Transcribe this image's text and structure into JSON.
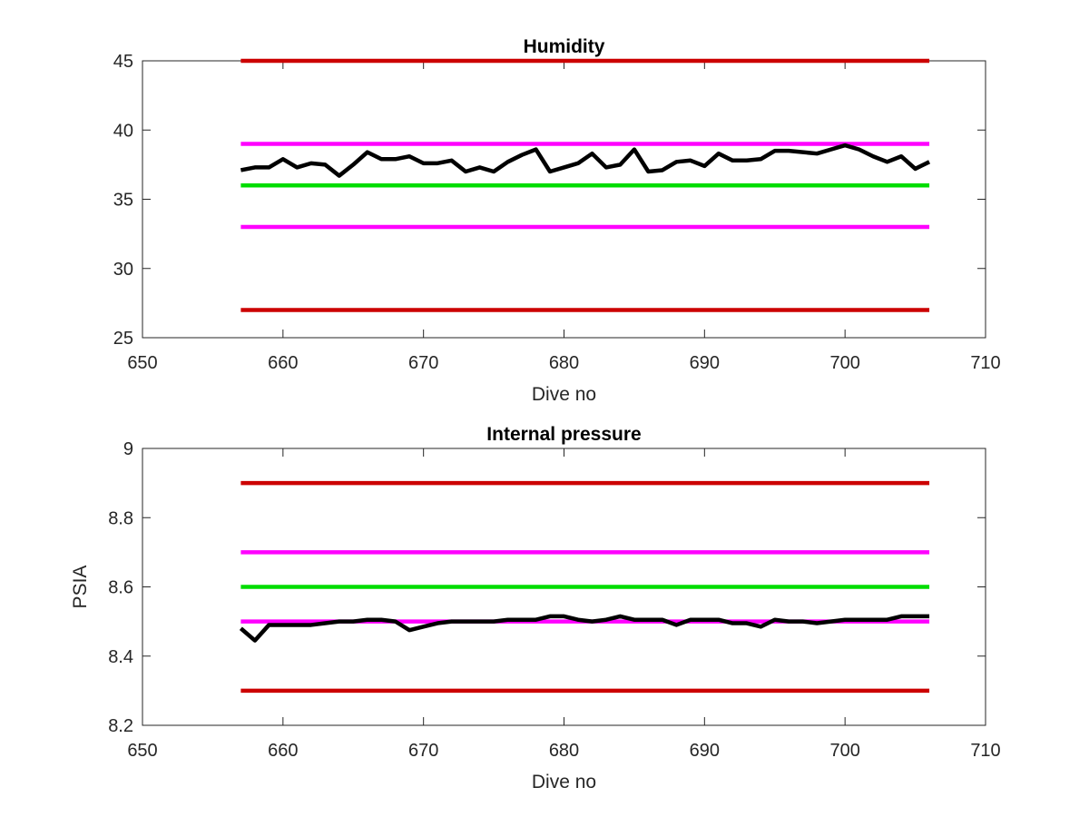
{
  "chart_data": [
    {
      "type": "line",
      "title": "Humidity",
      "xlabel": "Dive no",
      "ylabel": "",
      "xlim": [
        650,
        710
      ],
      "ylim": [
        25,
        45
      ],
      "xticks": [
        650,
        660,
        670,
        680,
        690,
        700,
        710
      ],
      "yticks": [
        25,
        30,
        35,
        40,
        45
      ],
      "grid": false,
      "series": [
        {
          "color": "#000000",
          "x": [
            657,
            658,
            659,
            660,
            661,
            662,
            663,
            664,
            665,
            666,
            667,
            668,
            669,
            670,
            671,
            672,
            673,
            674,
            675,
            676,
            677,
            678,
            679,
            680,
            681,
            682,
            683,
            684,
            685,
            686,
            687,
            688,
            689,
            690,
            691,
            692,
            693,
            694,
            695,
            696,
            697,
            698,
            699,
            700,
            701,
            702,
            703,
            704,
            705,
            706
          ],
          "values": [
            37.1,
            37.3,
            37.3,
            37.9,
            37.3,
            37.6,
            37.5,
            36.7,
            37.5,
            38.4,
            37.9,
            37.9,
            38.1,
            37.6,
            37.6,
            37.8,
            37.0,
            37.3,
            37.0,
            37.7,
            38.2,
            38.6,
            37.0,
            37.3,
            37.6,
            38.3,
            37.3,
            37.5,
            38.6,
            37.0,
            37.1,
            37.7,
            37.8,
            37.4,
            38.3,
            37.8,
            37.8,
            37.9,
            38.5,
            38.5,
            38.4,
            38.3,
            38.6,
            38.9,
            38.6,
            38.1,
            37.7,
            38.1,
            37.2,
            37.7
          ]
        },
        {
          "color": "#cc0000",
          "x": [
            657,
            706
          ],
          "values": [
            45,
            45
          ]
        },
        {
          "color": "#ff00ff",
          "x": [
            657,
            706
          ],
          "values": [
            39,
            39
          ]
        },
        {
          "color": "#00dd00",
          "x": [
            657,
            706
          ],
          "values": [
            36,
            36
          ]
        },
        {
          "color": "#ff00ff",
          "x": [
            657,
            706
          ],
          "values": [
            33,
            33
          ]
        },
        {
          "color": "#cc0000",
          "x": [
            657,
            706
          ],
          "values": [
            27,
            27
          ]
        }
      ]
    },
    {
      "type": "line",
      "title": "Internal pressure",
      "xlabel": "Dive no",
      "ylabel": "PSIA",
      "xlim": [
        650,
        710
      ],
      "ylim": [
        8.2,
        9.0
      ],
      "xticks": [
        650,
        660,
        670,
        680,
        690,
        700,
        710
      ],
      "yticks": [
        8.2,
        8.4,
        8.6,
        8.8,
        9
      ],
      "ytick_labels": [
        "8.2",
        "8.4",
        "8.6",
        "8.8",
        "9"
      ],
      "grid": false,
      "series": [
        {
          "color": "#000000",
          "x": [
            657,
            658,
            659,
            660,
            661,
            662,
            663,
            664,
            665,
            666,
            667,
            668,
            669,
            670,
            671,
            672,
            673,
            674,
            675,
            676,
            677,
            678,
            679,
            680,
            681,
            682,
            683,
            684,
            685,
            686,
            687,
            688,
            689,
            690,
            691,
            692,
            693,
            694,
            695,
            696,
            697,
            698,
            699,
            700,
            701,
            702,
            703,
            704,
            705,
            706
          ],
          "values": [
            8.48,
            8.445,
            8.49,
            8.49,
            8.49,
            8.49,
            8.495,
            8.5,
            8.5,
            8.505,
            8.505,
            8.5,
            8.475,
            8.485,
            8.495,
            8.5,
            8.5,
            8.5,
            8.5,
            8.505,
            8.505,
            8.505,
            8.515,
            8.515,
            8.505,
            8.5,
            8.505,
            8.515,
            8.505,
            8.505,
            8.505,
            8.49,
            8.505,
            8.505,
            8.505,
            8.495,
            8.495,
            8.485,
            8.505,
            8.5,
            8.5,
            8.495,
            8.5,
            8.505,
            8.505,
            8.505,
            8.505,
            8.515,
            8.515,
            8.515
          ]
        },
        {
          "color": "#cc0000",
          "x": [
            657,
            706
          ],
          "values": [
            8.9,
            8.9
          ]
        },
        {
          "color": "#ff00ff",
          "x": [
            657,
            706
          ],
          "values": [
            8.7,
            8.7
          ]
        },
        {
          "color": "#00dd00",
          "x": [
            657,
            706
          ],
          "values": [
            8.6,
            8.6
          ]
        },
        {
          "color": "#ff00ff",
          "x": [
            657,
            706
          ],
          "values": [
            8.5,
            8.5
          ]
        },
        {
          "color": "#cc0000",
          "x": [
            657,
            706
          ],
          "values": [
            8.3,
            8.3
          ]
        }
      ]
    }
  ]
}
